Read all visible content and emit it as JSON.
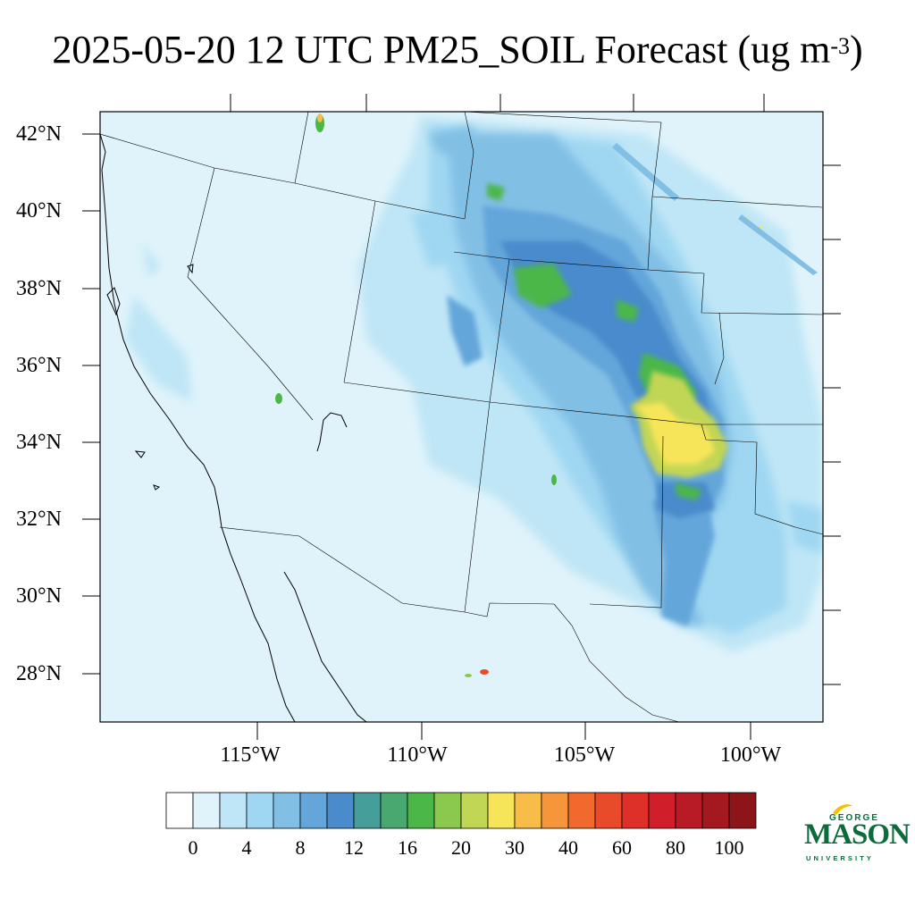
{
  "title": {
    "main": "2025-05-20 12 UTC PM25_SOIL Forecast (ug m",
    "superscript": "-3",
    "close": ")"
  },
  "map": {
    "lat_labels": [
      "42°N",
      "40°N",
      "38°N",
      "36°N",
      "34°N",
      "32°N",
      "30°N",
      "28°N"
    ],
    "lon_labels": [
      "115°W",
      "110°W",
      "105°W",
      "100°W"
    ],
    "land_background_color": "#e0f3fb",
    "boundary_color": "#000000"
  },
  "colorbar": {
    "colors": [
      "#ffffff",
      "#e0f3fb",
      "#bfe6f6",
      "#9fd7f2",
      "#82bfe5",
      "#64a6da",
      "#4a8bcc",
      "#469e9b",
      "#48a870",
      "#4bb748",
      "#8bc84e",
      "#c2d655",
      "#f6e558",
      "#f8bd49",
      "#f5963a",
      "#f1692d",
      "#e84a2a",
      "#de3029",
      "#d01f2a",
      "#b81b26",
      "#a3191f",
      "#8c1519"
    ],
    "tick_labels": [
      "0",
      "4",
      "8",
      "12",
      "16",
      "20",
      "30",
      "40",
      "60",
      "80",
      "100"
    ]
  },
  "logo": {
    "line1": "GEORGE",
    "line2": "MASON",
    "line3": "UNIVERSITY",
    "color": "#0b6b3a",
    "accent_color": "#f2c200"
  }
}
